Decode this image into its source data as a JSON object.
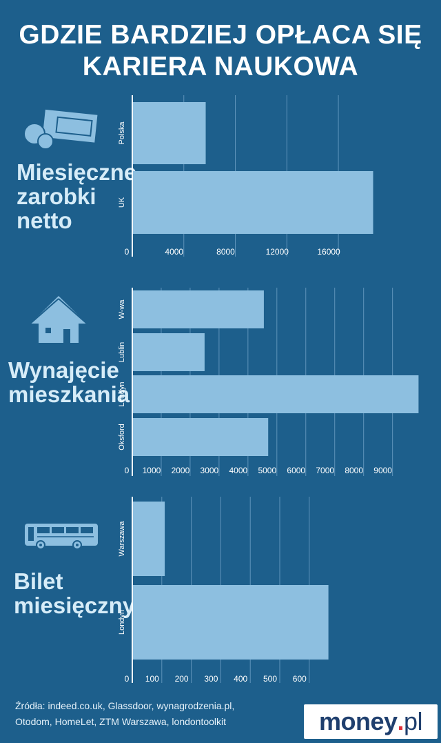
{
  "header": {
    "title_line1": "GDZIE BARDZIEJ OPŁACA SIĘ",
    "title_line2": "KARIERA NAUKOWA"
  },
  "colors": {
    "background": "#1d5f8c",
    "bar": "#8dbfe0",
    "label": "#d6ecf8"
  },
  "sections": [
    {
      "label_line1": "Miesięczne",
      "label_line2": "zarobki",
      "label_line3": "netto",
      "icon": "money-icon"
    },
    {
      "label_line1": "Wynajęcie",
      "label_line2": "mieszkania",
      "icon": "house-icon"
    },
    {
      "label_line1": "Bilet",
      "label_line2": "miesięczny",
      "icon": "bus-icon"
    }
  ],
  "chart_data": [
    {
      "type": "bar",
      "orientation": "horizontal",
      "categories": [
        "Polska",
        "UK"
      ],
      "values": [
        5700,
        18700
      ],
      "xlim": [
        0,
        22900
      ],
      "xticks": [
        "0",
        "4000",
        "8000",
        "12000",
        "16000"
      ],
      "grid": true
    },
    {
      "type": "bar",
      "orientation": "horizontal",
      "categories": [
        "W-wa",
        "Lublin",
        "Londyn",
        "Oksford"
      ],
      "values": [
        4550,
        2500,
        9900,
        4700
      ],
      "xlim": [
        0,
        10200
      ],
      "xticks": [
        "0",
        "1000",
        "2000",
        "3000",
        "4000",
        "5000",
        "6000",
        "7000",
        "8000",
        "9000"
      ],
      "grid": true
    },
    {
      "type": "bar",
      "orientation": "horizontal",
      "categories": [
        "Warszawa",
        "Londyn"
      ],
      "values": [
        110,
        665
      ],
      "xlim": [
        0,
        1000
      ],
      "xticks": [
        "0",
        "100",
        "200",
        "300",
        "400",
        "500",
        "600"
      ],
      "grid": true
    }
  ],
  "footer": {
    "source_line1": "Źródła: indeed.co.uk, Glassdoor, wynagrodzenia.pl,",
    "source_line2": "Otodom, HomeLet, ZTM Warszawa, londontoolkit",
    "logo_main": "money",
    "logo_dot": ".",
    "logo_tld": "pl"
  }
}
